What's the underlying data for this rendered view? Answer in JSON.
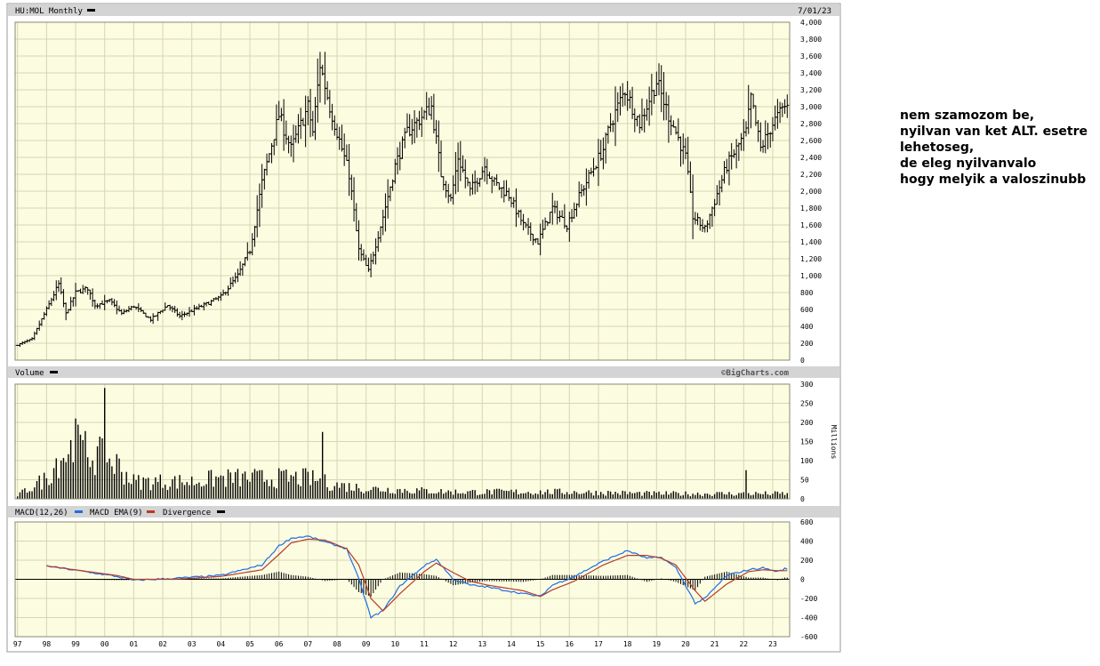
{
  "header": {
    "symbol": "HU:MOL Monthly",
    "date": "7/01/23"
  },
  "volume_header": {
    "label": "Volume",
    "credit": "©BigCharts.com"
  },
  "macd_header": {
    "label1": "MACD(12,26)",
    "label2": "MACD EMA(9)",
    "label3": "Divergence"
  },
  "colors": {
    "background": "#fcfce1",
    "grid": "#d6d6b4",
    "panel_bar": "#d4d4d4",
    "macd": "#1e6ee6",
    "signal": "#b43c28",
    "bars": "#000000"
  },
  "note": {
    "lines": [
      "nem szamozom be,",
      "nyilvan van ket ALT. esetre",
      "lehetoseg,",
      "de eleg nyilvanvalo",
      "hogy melyik a valoszinubb"
    ]
  },
  "chart_data": [
    {
      "type": "ohlc",
      "panel": "price",
      "y_ticks": [
        "0",
        "200",
        "400",
        "600",
        "800",
        "1,000",
        "1,200",
        "1,400",
        "1,600",
        "1,800",
        "2,000",
        "2,200",
        "2,400",
        "2,600",
        "2,800",
        "3,000",
        "3,200",
        "3,400",
        "3,600",
        "3,800",
        "4,000"
      ],
      "ylim": [
        0,
        4000
      ],
      "x_ticks": [
        "97",
        "98",
        "99",
        "00",
        "01",
        "02",
        "03",
        "04",
        "05",
        "06",
        "07",
        "08",
        "09",
        "10",
        "11",
        "12",
        "13",
        "14",
        "15",
        "16",
        "17",
        "18",
        "19",
        "20",
        "21",
        "22",
        "23"
      ],
      "close_path": [
        [
          "1997-01",
          180
        ],
        [
          "1997-07",
          250
        ],
        [
          "1998-01",
          600
        ],
        [
          "1998-06",
          900
        ],
        [
          "1998-09",
          550
        ],
        [
          "1999-01",
          800
        ],
        [
          "1999-06",
          850
        ],
        [
          "1999-09",
          650
        ],
        [
          "2000-03",
          700
        ],
        [
          "2000-08",
          550
        ],
        [
          "2001-01",
          640
        ],
        [
          "2001-08",
          480
        ],
        [
          "2002-03",
          650
        ],
        [
          "2002-08",
          520
        ],
        [
          "2003-06",
          650
        ],
        [
          "2004-01",
          750
        ],
        [
          "2004-08",
          1000
        ],
        [
          "2005-01",
          1300
        ],
        [
          "2005-06",
          2100
        ],
        [
          "2006-01",
          2900
        ],
        [
          "2006-06",
          2500
        ],
        [
          "2007-01",
          3000
        ],
        [
          "2007-03",
          2700
        ],
        [
          "2007-06",
          3500
        ],
        [
          "2007-10",
          3000
        ],
        [
          "2008-06",
          2200
        ],
        [
          "2008-10",
          1300
        ],
        [
          "2009-02",
          1050
        ],
        [
          "2009-08",
          1700
        ],
        [
          "2010-01",
          2300
        ],
        [
          "2010-06",
          2700
        ],
        [
          "2011-04",
          3000
        ],
        [
          "2011-08",
          2200
        ],
        [
          "2011-12",
          1900
        ],
        [
          "2012-03",
          2400
        ],
        [
          "2012-08",
          2000
        ],
        [
          "2013-02",
          2300
        ],
        [
          "2013-06",
          2100
        ],
        [
          "2013-12",
          1950
        ],
        [
          "2014-06",
          1600
        ],
        [
          "2014-12",
          1400
        ],
        [
          "2015-03",
          1600
        ],
        [
          "2015-06",
          1800
        ],
        [
          "2015-12",
          1600
        ],
        [
          "2016-06",
          2000
        ],
        [
          "2017-03",
          2500
        ],
        [
          "2017-06",
          2800
        ],
        [
          "2017-12",
          3200
        ],
        [
          "2018-06",
          2800
        ],
        [
          "2019-01",
          3300
        ],
        [
          "2019-06",
          2900
        ],
        [
          "2019-09",
          2700
        ],
        [
          "2020-01",
          2400
        ],
        [
          "2020-04",
          1700
        ],
        [
          "2020-09",
          1550
        ],
        [
          "2021-06",
          2300
        ],
        [
          "2022-02",
          2700
        ],
        [
          "2022-04",
          3100
        ],
        [
          "2022-08",
          2500
        ],
        [
          "2023-01",
          2800
        ],
        [
          "2023-06",
          3000
        ]
      ]
    },
    {
      "type": "bar",
      "panel": "volume",
      "ylabel": "Millions",
      "y_ticks": [
        "0",
        "50",
        "100",
        "150",
        "200",
        "250",
        "300"
      ],
      "ylim": [
        0,
        300
      ],
      "spikes": [
        [
          "2000-01",
          290
        ],
        [
          "1999-01",
          210
        ],
        [
          "2007-07",
          175
        ],
        [
          "2022-02",
          75
        ]
      ],
      "level_path": [
        [
          "1997-01",
          10
        ],
        [
          "1998-01",
          60
        ],
        [
          "1998-06",
          120
        ],
        [
          "1999-01",
          150
        ],
        [
          "2000-06",
          100
        ],
        [
          "2001-01",
          50
        ],
        [
          "2003-01",
          50
        ],
        [
          "2004-01",
          60
        ],
        [
          "2006-01",
          60
        ],
        [
          "2007-01",
          60
        ],
        [
          "2008-01",
          40
        ],
        [
          "2009-01",
          30
        ],
        [
          "2012-01",
          20
        ],
        [
          "2016-01",
          20
        ],
        [
          "2019-01",
          15
        ],
        [
          "2023-06",
          15
        ]
      ]
    },
    {
      "type": "line",
      "panel": "macd",
      "y_ticks": [
        "600",
        "400",
        "200",
        "0",
        "-200",
        "-400",
        "-600"
      ],
      "ylim": [
        -600,
        600
      ],
      "series_x": [
        "1998-01",
        "2000-06",
        "2001-01",
        "2002-06",
        "2004-01",
        "2005-06",
        "2006-01",
        "2006-06",
        "2007-01",
        "2007-08",
        "2008-05",
        "2008-10",
        "2009-03",
        "2009-08",
        "2010-03",
        "2011-01",
        "2011-06",
        "2012-01",
        "2012-08",
        "2013-03",
        "2014-06",
        "2015-01",
        "2015-06",
        "2016-03",
        "2017-03",
        "2018-01",
        "2018-09",
        "2019-03",
        "2019-09",
        "2020-05",
        "2020-09",
        "2021-06",
        "2022-03",
        "2022-09",
        "2023-03",
        "2023-06"
      ],
      "series": [
        {
          "name": "MACD(12,26)",
          "values": [
            140,
            30,
            -10,
            10,
            40,
            150,
            350,
            430,
            450,
            390,
            320,
            0,
            -400,
            -330,
            -70,
            140,
            210,
            0,
            -60,
            -80,
            -150,
            -180,
            -60,
            30,
            190,
            300,
            220,
            230,
            120,
            -250,
            -200,
            40,
            100,
            120,
            80,
            110
          ]
        },
        {
          "name": "MACD EMA(9)",
          "values": [
            140,
            40,
            0,
            0,
            30,
            100,
            260,
            380,
            420,
            410,
            320,
            150,
            -200,
            -330,
            -150,
            80,
            170,
            70,
            -20,
            -60,
            -120,
            -180,
            -110,
            -20,
            150,
            250,
            250,
            220,
            150,
            -120,
            -230,
            -50,
            80,
            100,
            90,
            90
          ]
        }
      ]
    }
  ]
}
